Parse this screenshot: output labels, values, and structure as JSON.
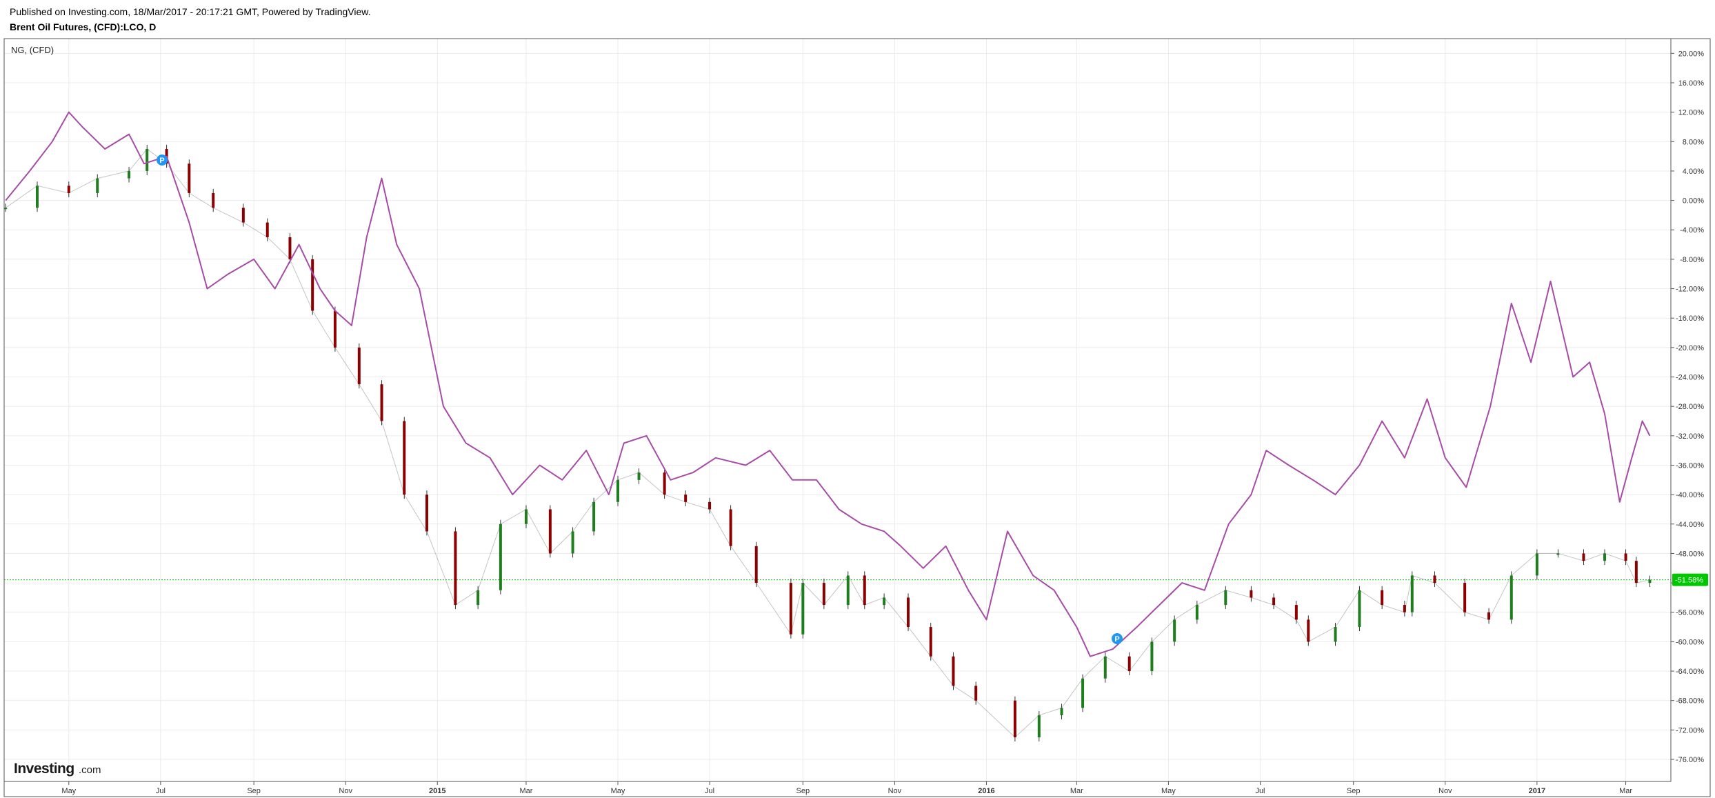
{
  "header": {
    "published": "Published on Investing.com, 18/Mar/2017 - 20:17:21 GMT, Powered by TradingView.",
    "title": "Brent Oil Futures, (CFD):LCO, D"
  },
  "compare_label": "NG,  (CFD)",
  "logo": {
    "text": "Investing",
    "suffix": ".com"
  },
  "price_badge": "-51.58%",
  "colors": {
    "up_candle": "#1e7e1e",
    "down_candle": "#8b0000",
    "ng_line": "#a64ca6",
    "badge": "#00c800",
    "grid": "#ebebeb",
    "marker": "#2196f3"
  },
  "markers": [
    {
      "label": "P"
    },
    {
      "label": "P"
    }
  ],
  "chart_data": {
    "type": "line",
    "y_unit": "%",
    "ylim": [
      -79,
      22
    ],
    "y_ticks": [
      "20.00%",
      "16.00%",
      "12.00%",
      "8.00%",
      "4.00%",
      "0.00%",
      "-4.00%",
      "-8.00%",
      "-12.00%",
      "-16.00%",
      "-20.00%",
      "-24.00%",
      "-28.00%",
      "-32.00%",
      "-36.00%",
      "-40.00%",
      "-44.00%",
      "-48.00%",
      "-52.00%",
      "-56.00%",
      "-60.00%",
      "-64.00%",
      "-68.00%",
      "-72.00%",
      "-76.00%"
    ],
    "x_ticks": [
      {
        "label": "May",
        "date": "2014-05-01",
        "bold": false
      },
      {
        "label": "Jul",
        "date": "2014-07-01",
        "bold": false
      },
      {
        "label": "Sep",
        "date": "2014-09-01",
        "bold": false
      },
      {
        "label": "Nov",
        "date": "2014-11-01",
        "bold": false
      },
      {
        "label": "2015",
        "date": "2015-01-01",
        "bold": true
      },
      {
        "label": "Mar",
        "date": "2015-03-01",
        "bold": false
      },
      {
        "label": "May",
        "date": "2015-05-01",
        "bold": false
      },
      {
        "label": "Jul",
        "date": "2015-07-01",
        "bold": false
      },
      {
        "label": "Sep",
        "date": "2015-09-01",
        "bold": false
      },
      {
        "label": "Nov",
        "date": "2015-11-01",
        "bold": false
      },
      {
        "label": "2016",
        "date": "2016-01-01",
        "bold": true
      },
      {
        "label": "Mar",
        "date": "2016-03-01",
        "bold": false
      },
      {
        "label": "May",
        "date": "2016-05-01",
        "bold": false
      },
      {
        "label": "Jul",
        "date": "2016-07-01",
        "bold": false
      },
      {
        "label": "Sep",
        "date": "2016-09-01",
        "bold": false
      },
      {
        "label": "Nov",
        "date": "2016-11-01",
        "bold": false
      },
      {
        "label": "2017",
        "date": "2017-01-01",
        "bold": true
      },
      {
        "label": "Mar",
        "date": "2017-03-01",
        "bold": false
      }
    ],
    "xlim": [
      "2014-03-19",
      "2017-03-31"
    ],
    "current_value": -51.58,
    "series": [
      {
        "name": "Brent Oil Futures",
        "style": "candlestick",
        "x": [
          "2014-03-20",
          "2014-04-10",
          "2014-05-01",
          "2014-05-20",
          "2014-06-10",
          "2014-06-22",
          "2014-07-05",
          "2014-07-20",
          "2014-08-05",
          "2014-08-25",
          "2014-09-10",
          "2014-09-25",
          "2014-10-10",
          "2014-10-25",
          "2014-11-10",
          "2014-11-25",
          "2014-12-10",
          "2014-12-25",
          "2015-01-13",
          "2015-01-28",
          "2015-02-12",
          "2015-03-01",
          "2015-03-17",
          "2015-04-01",
          "2015-04-15",
          "2015-05-01",
          "2015-05-15",
          "2015-06-01",
          "2015-06-15",
          "2015-07-01",
          "2015-07-15",
          "2015-08-01",
          "2015-08-24",
          "2015-09-01",
          "2015-09-15",
          "2015-10-01",
          "2015-10-12",
          "2015-10-25",
          "2015-11-10",
          "2015-11-25",
          "2015-12-10",
          "2015-12-25",
          "2016-01-20",
          "2016-02-05",
          "2016-02-20",
          "2016-03-05",
          "2016-03-20",
          "2016-04-05",
          "2016-04-20",
          "2016-05-05",
          "2016-05-20",
          "2016-06-08",
          "2016-06-25",
          "2016-07-10",
          "2016-07-25",
          "2016-08-02",
          "2016-08-20",
          "2016-09-05",
          "2016-09-20",
          "2016-10-05",
          "2016-10-10",
          "2016-10-25",
          "2016-11-14",
          "2016-11-30",
          "2016-12-15",
          "2017-01-01",
          "2017-01-15",
          "2017-02-01",
          "2017-02-15",
          "2017-03-01",
          "2017-03-08",
          "2017-03-17"
        ],
        "values": [
          -1,
          2,
          1,
          3,
          4,
          7,
          5,
          1,
          -1,
          -3,
          -5,
          -8,
          -15,
          -20,
          -25,
          -30,
          -40,
          -45,
          -55,
          -53,
          -44,
          -42,
          -48,
          -45,
          -41,
          -38,
          -37,
          -40,
          -41,
          -42,
          -47,
          -52,
          -59,
          -52,
          -55,
          -51,
          -55,
          -54,
          -58,
          -62,
          -66,
          -68,
          -73,
          -70,
          -69,
          -65,
          -62,
          -64,
          -60,
          -57,
          -55,
          -53,
          -54,
          -55,
          -57,
          -60,
          -58,
          -53,
          -55,
          -56,
          -51,
          -52,
          -56,
          -57,
          -51,
          -48,
          -48,
          -49,
          -48,
          -49,
          -52,
          -51.58
        ]
      },
      {
        "name": "NG",
        "style": "line",
        "x": [
          "2014-03-20",
          "2014-04-05",
          "2014-04-20",
          "2014-05-01",
          "2014-05-10",
          "2014-05-25",
          "2014-06-10",
          "2014-06-20",
          "2014-07-05",
          "2014-07-20",
          "2014-08-01",
          "2014-08-15",
          "2014-09-01",
          "2014-09-15",
          "2014-10-01",
          "2014-10-15",
          "2014-10-25",
          "2014-11-05",
          "2014-11-15",
          "2014-11-25",
          "2014-12-05",
          "2014-12-20",
          "2015-01-05",
          "2015-01-20",
          "2015-02-05",
          "2015-02-20",
          "2015-03-10",
          "2015-03-25",
          "2015-04-10",
          "2015-04-25",
          "2015-05-05",
          "2015-05-20",
          "2015-06-05",
          "2015-06-20",
          "2015-07-05",
          "2015-07-25",
          "2015-08-10",
          "2015-08-25",
          "2015-09-10",
          "2015-09-25",
          "2015-10-10",
          "2015-10-25",
          "2015-11-05",
          "2015-11-20",
          "2015-12-05",
          "2015-12-20",
          "2016-01-01",
          "2016-01-15",
          "2016-02-01",
          "2016-02-15",
          "2016-03-01",
          "2016-03-10",
          "2016-03-25",
          "2016-04-10",
          "2016-04-25",
          "2016-05-10",
          "2016-05-25",
          "2016-06-10",
          "2016-06-25",
          "2016-07-05",
          "2016-07-20",
          "2016-08-05",
          "2016-08-20",
          "2016-09-05",
          "2016-09-20",
          "2016-10-05",
          "2016-10-20",
          "2016-11-01",
          "2016-11-15",
          "2016-12-01",
          "2016-12-15",
          "2016-12-28",
          "2017-01-10",
          "2017-01-25",
          "2017-02-05",
          "2017-02-15",
          "2017-02-25",
          "2017-03-05",
          "2017-03-12",
          "2017-03-17"
        ],
        "values": [
          0,
          4,
          8,
          12,
          10,
          7,
          9,
          5,
          6,
          -3,
          -12,
          -10,
          -8,
          -12,
          -6,
          -12,
          -15,
          -17,
          -5,
          3,
          -6,
          -12,
          -28,
          -33,
          -35,
          -40,
          -36,
          -38,
          -34,
          -40,
          -33,
          -32,
          -38,
          -37,
          -35,
          -36,
          -34,
          -38,
          -38,
          -42,
          -44,
          -45,
          -47,
          -50,
          -47,
          -53,
          -57,
          -45,
          -51,
          -53,
          -58,
          -62,
          -61,
          -58,
          -55,
          -52,
          -53,
          -44,
          -40,
          -34,
          -36,
          -38,
          -40,
          -36,
          -30,
          -35,
          -27,
          -35,
          -39,
          -28,
          -14,
          -22,
          -11,
          -24,
          -22,
          -29,
          -41,
          -35,
          -30,
          -32
        ]
      }
    ]
  }
}
